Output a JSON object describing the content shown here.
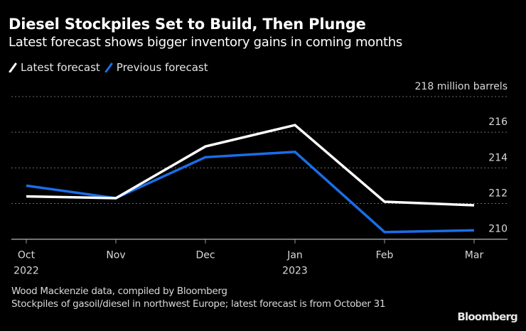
{
  "header": {
    "title": "Diesel Stockpiles Set to Build, Then Plunge",
    "subtitle": "Latest forecast shows bigger inventory gains in coming months"
  },
  "legend": [
    {
      "label": "Latest forecast",
      "color": "#ffffff"
    },
    {
      "label": "Previous forecast",
      "color": "#1a6ee8"
    }
  ],
  "footer": {
    "source": "Wood Mackenzie data, compiled by Bloomberg",
    "note": "Stockpiles of gasoil/diesel in northwest Europe; latest forecast is from October 31",
    "logo": "Bloomberg"
  },
  "chart_data": {
    "type": "line",
    "title": "Diesel Stockpiles Set to Build, Then Plunge",
    "subtitle": "Latest forecast shows bigger inventory gains in coming months",
    "categories": [
      "Oct",
      "Nov",
      "Dec",
      "Jan",
      "Feb",
      "Mar"
    ],
    "category_sublabels": [
      "2022",
      "",
      "",
      "2023",
      "",
      ""
    ],
    "xlabel": "",
    "ylabel": "million barrels",
    "ylim": [
      210,
      218
    ],
    "yticks": [
      210,
      212,
      214,
      216,
      218
    ],
    "ytick_labels": [
      "210",
      "212",
      "214",
      "216",
      "218 million barrels"
    ],
    "y_axis_side": "right",
    "grid": true,
    "legend_position": "top-left",
    "series": [
      {
        "name": "Latest forecast",
        "color": "#ffffff",
        "values": [
          212.4,
          212.3,
          215.2,
          216.4,
          212.1,
          211.9
        ]
      },
      {
        "name": "Previous forecast",
        "color": "#1a6ee8",
        "values": [
          213.0,
          212.3,
          214.6,
          214.9,
          210.4,
          210.5
        ]
      }
    ]
  }
}
